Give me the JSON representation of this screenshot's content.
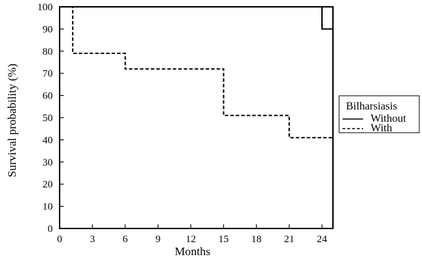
{
  "chart_data": {
    "type": "line",
    "xlabel": "Months",
    "ylabel": "Survival probability (%)",
    "xlim": [
      0,
      25
    ],
    "ylim": [
      0,
      100
    ],
    "x_ticks": [
      "0",
      "3",
      "6",
      "9",
      "12",
      "15",
      "18",
      "21",
      "24"
    ],
    "y_ticks": [
      "0",
      "10",
      "20",
      "30",
      "40",
      "50",
      "60",
      "70",
      "80",
      "90",
      "100"
    ],
    "grid": false,
    "legend": {
      "title": "Bilharsiasis",
      "placement": "right"
    },
    "series": [
      {
        "name": "Without",
        "line_style": "solid",
        "x": [
          0,
          24,
          24,
          25
        ],
        "y": [
          100,
          100,
          90,
          90
        ]
      },
      {
        "name": "With",
        "line_style": "dashed",
        "x": [
          0,
          1.2,
          1.2,
          6,
          6,
          15,
          15,
          21,
          21,
          25
        ],
        "y": [
          100,
          100,
          79,
          79,
          72,
          72,
          51,
          51,
          41,
          41
        ]
      }
    ]
  }
}
